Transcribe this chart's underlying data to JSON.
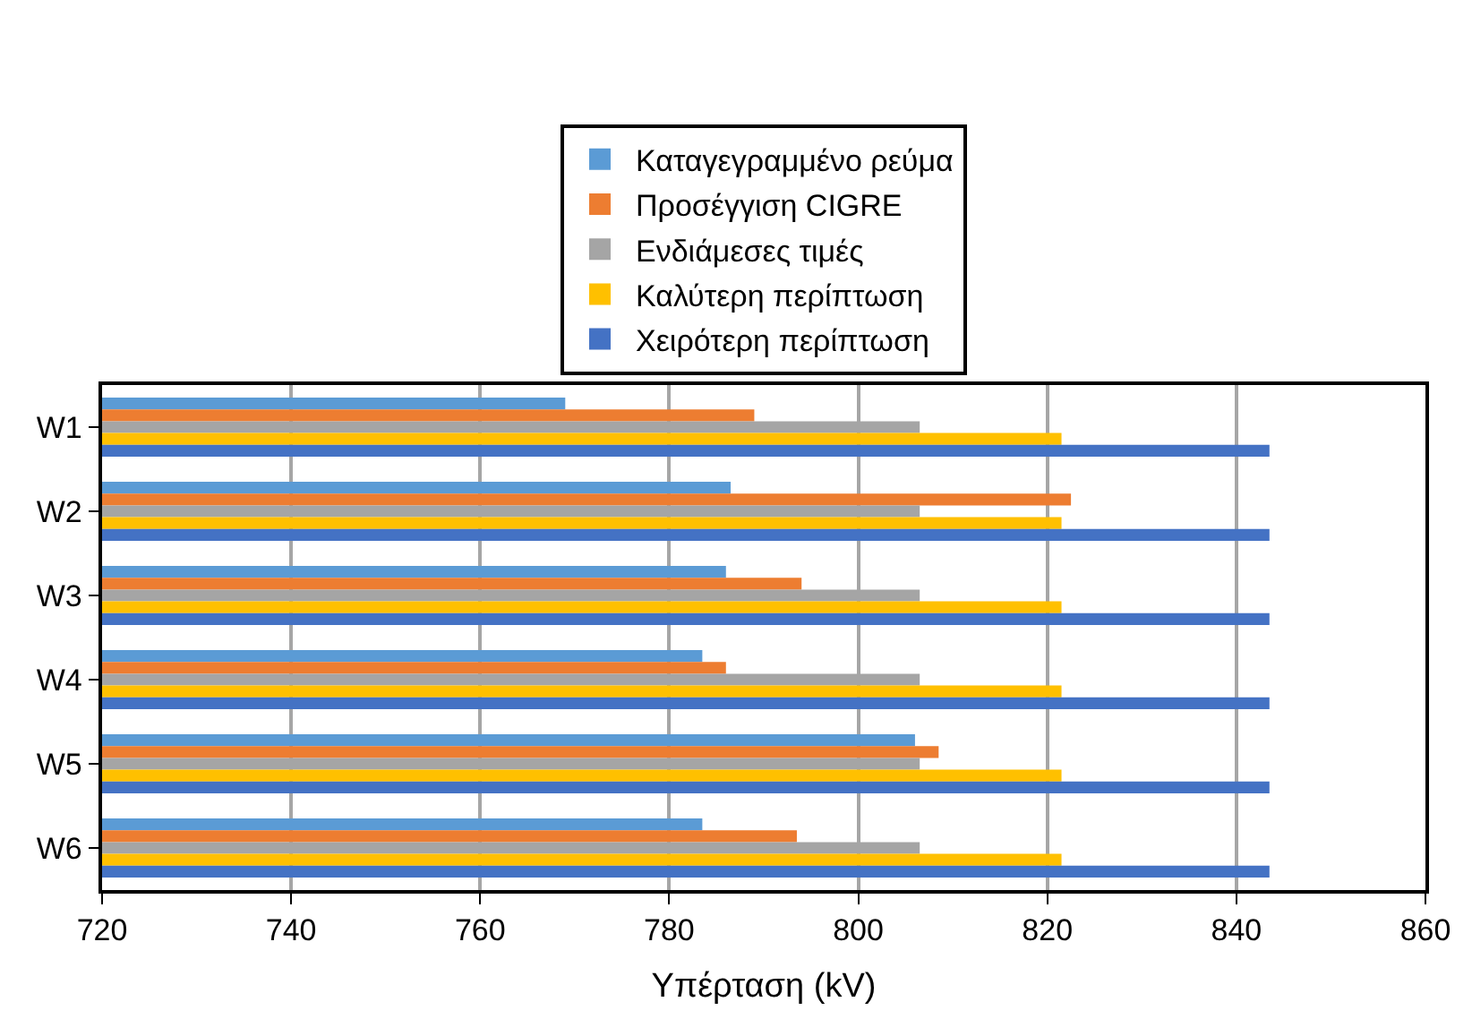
{
  "chart_data": {
    "type": "bar",
    "orientation": "horizontal",
    "xlabel": "Υπέρταση (kV)",
    "categories": [
      "W1",
      "W2",
      "W3",
      "W4",
      "W5",
      "W6"
    ],
    "series": [
      {
        "name": "Καταγεγραμμένο ρεύμα",
        "color": "#5b9bd5",
        "values": [
          769,
          786.5,
          786,
          783.5,
          806,
          783.5
        ]
      },
      {
        "name": "Προσέγγιση CIGRE",
        "color": "#ed7d31",
        "values": [
          789,
          822.5,
          794,
          786,
          808.5,
          793.5
        ]
      },
      {
        "name": "Ενδιάμεσες τιμές",
        "color": "#a5a5a5",
        "values": [
          806.5,
          806.5,
          806.5,
          806.5,
          806.5,
          806.5
        ]
      },
      {
        "name": "Καλύτερη περίπτωση",
        "color": "#ffc000",
        "values": [
          821.5,
          821.5,
          821.5,
          821.5,
          821.5,
          821.5
        ]
      },
      {
        "name": "Χειρότερη περίπτωση",
        "color": "#4472c4",
        "values": [
          843.5,
          843.5,
          843.5,
          843.5,
          843.5,
          843.5
        ]
      }
    ],
    "xlim": [
      720,
      860
    ],
    "xticks": [
      720,
      740,
      760,
      780,
      800,
      820,
      840,
      860
    ],
    "grid": "x",
    "legend": "top"
  }
}
